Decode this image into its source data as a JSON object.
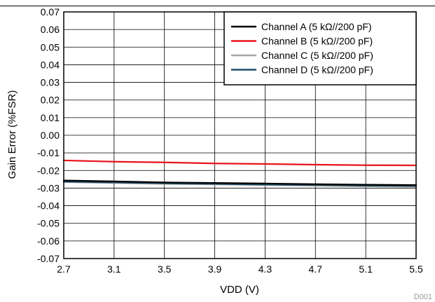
{
  "chart_data": {
    "type": "line",
    "xlabel": "VDD (V)",
    "ylabel": "Gain Error (%FSR)",
    "xlim": [
      2.7,
      5.5
    ],
    "ylim": [
      -0.07,
      0.07
    ],
    "x_ticks": [
      2.7,
      3.1,
      3.5,
      3.9,
      4.3,
      4.7,
      5.1,
      5.5
    ],
    "x_tick_labels": [
      "2.7",
      "3.1",
      "3.5",
      "3.9",
      "4.3",
      "4.7",
      "5.1",
      "5.5"
    ],
    "y_ticks": [
      0.07,
      0.06,
      0.05,
      0.04,
      0.03,
      0.02,
      0.01,
      0.0,
      -0.01,
      -0.02,
      -0.03,
      -0.04,
      -0.05,
      -0.06,
      -0.07
    ],
    "y_tick_labels": [
      "0.07",
      "0.06",
      "0.05",
      "0.04",
      "0.03",
      "0.02",
      "0.01",
      "0.00",
      "-0.01",
      "-0.02",
      "-0.03",
      "-0.04",
      "-0.05",
      "-0.06",
      "-0.07"
    ],
    "grid": true,
    "legend_position": "top-right",
    "figure_code": "D001",
    "x": [
      2.7,
      3.1,
      3.5,
      3.9,
      4.3,
      4.7,
      5.1,
      5.5
    ],
    "series": [
      {
        "name": "Channel A (5 kΩ//200 pF)",
        "color": "#000000",
        "values": [
          -0.0257,
          -0.0262,
          -0.0268,
          -0.0271,
          -0.0274,
          -0.0278,
          -0.0281,
          -0.0283
        ]
      },
      {
        "name": "Channel B (5 kΩ//200 pF)",
        "color": "#e8141c",
        "values": [
          -0.0143,
          -0.015,
          -0.0154,
          -0.016,
          -0.0163,
          -0.0167,
          -0.017,
          -0.0171
        ]
      },
      {
        "name": "Channel C (5 kΩ//200 pF)",
        "color": "#a6a6a6",
        "values": [
          -0.0266,
          -0.0271,
          -0.0276,
          -0.0279,
          -0.0283,
          -0.0286,
          -0.029,
          -0.0292
        ]
      },
      {
        "name": "Channel D (5 kΩ//200 pF)",
        "color": "#1f4e6b",
        "values": [
          -0.0263,
          -0.0268,
          -0.0273,
          -0.0276,
          -0.028,
          -0.0283,
          -0.0286,
          -0.0288
        ]
      }
    ]
  }
}
